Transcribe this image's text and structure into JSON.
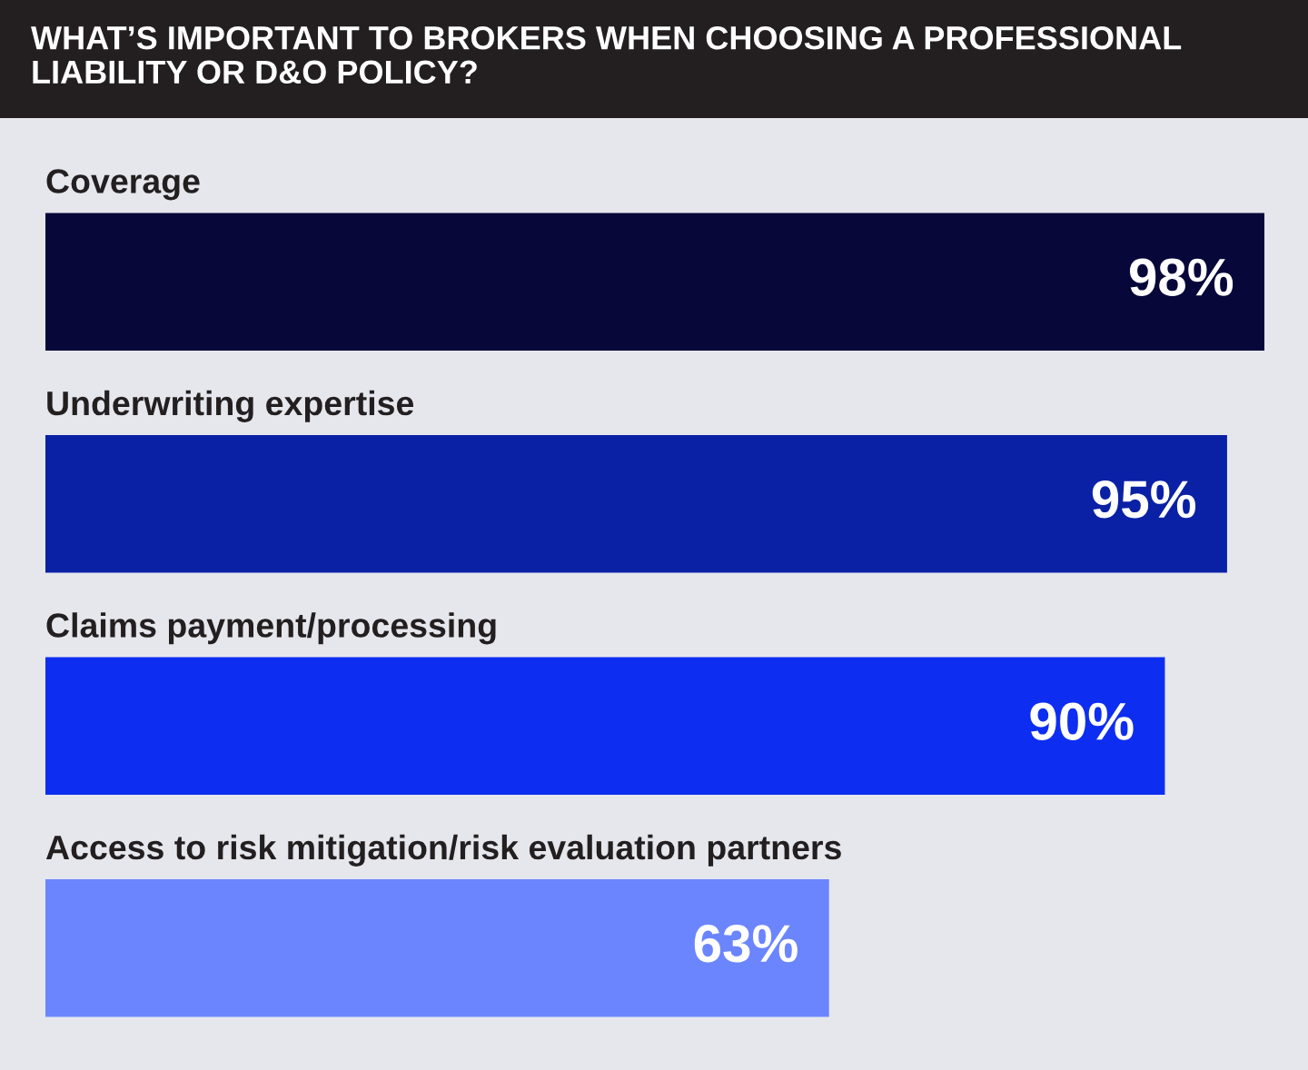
{
  "chart_data": {
    "type": "bar",
    "orientation": "horizontal",
    "title": "WHAT’S IMPORTANT TO BROKERS WHEN CHOOSING A PROFESSIONAL LIABILITY OR D&O POLICY?",
    "categories": [
      "Coverage",
      "Underwriting expertise",
      "Claims payment/processing",
      "Access to risk mitigation/risk evaluation partners"
    ],
    "values": [
      98,
      95,
      90,
      63
    ],
    "colors": [
      "#07073a",
      "#0a21a5",
      "#0d2ef0",
      "#6b85ff"
    ],
    "value_labels": [
      "98%",
      "95%",
      "90%",
      "63%"
    ]
  }
}
